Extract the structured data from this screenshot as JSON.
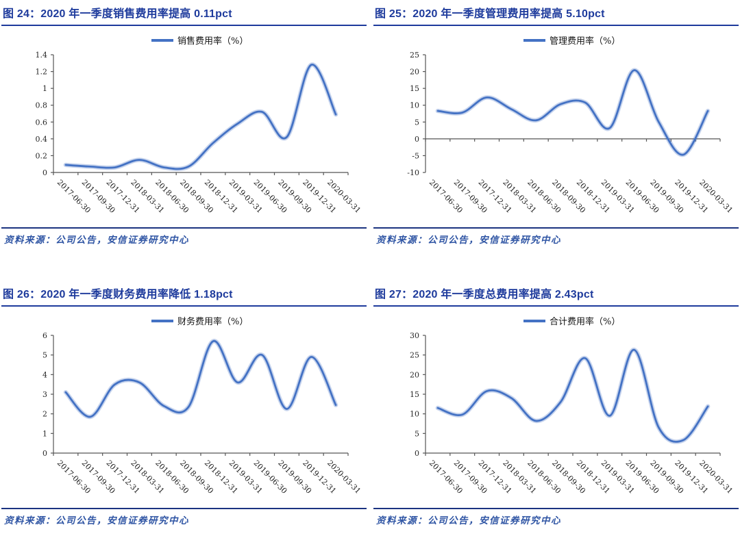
{
  "page": {
    "background": "#ffffff"
  },
  "colors": {
    "title_navy": "#1d3a9c",
    "rule_navy": "#1b3380",
    "source_blue": "#2f55a4",
    "line_blue": "#4472c4",
    "line_halo": "rgba(68,114,196,0.30)",
    "axis_gray": "#555555",
    "tick_text": "#262626"
  },
  "x_categories": [
    "2017-06-30",
    "2017-09-30",
    "2017-12-31",
    "2018-03-31",
    "2018-06-30",
    "2018-09-30",
    "2018-12-31",
    "2019-03-31",
    "2019-06-30",
    "2019-09-30",
    "2019-12-31",
    "2020-03-31"
  ],
  "figures": [
    {
      "title": "图 24：2020 年一季度销售费用率提高 0.11pct",
      "legend": "销售费用率（%）",
      "source": "资料来源：公司公告，安信证券研究中心",
      "chart_data": {
        "type": "line",
        "title": "2020 年一季度销售费用率提高 0.11pct",
        "categories": [
          "2017-06-30",
          "2017-09-30",
          "2017-12-31",
          "2018-03-31",
          "2018-06-30",
          "2018-09-30",
          "2018-12-31",
          "2019-03-31",
          "2019-06-30",
          "2019-09-30",
          "2019-12-31",
          "2020-03-31"
        ],
        "series": [
          {
            "name": "销售费用率（%）",
            "values": [
              0.09,
              0.07,
              0.06,
              0.15,
              0.06,
              0.07,
              0.35,
              0.58,
              0.72,
              0.42,
              1.28,
              0.69
            ]
          }
        ],
        "ylim": [
          0,
          1.4
        ],
        "yticks": [
          0,
          0.2,
          0.4,
          0.6,
          0.8,
          1,
          1.2,
          1.4
        ],
        "grid": false,
        "legend_position": "top-center",
        "smooth": true
      }
    },
    {
      "title": "图 25：2020 年一季度管理费用率提高 5.10pct",
      "legend": "管理费用率（%）",
      "source": "资料来源：公司公告，安信证券研究中心",
      "chart_data": {
        "type": "line",
        "title": "2020 年一季度管理费用率提高 5.10pct",
        "categories": [
          "2017-06-30",
          "2017-09-30",
          "2017-12-31",
          "2018-03-31",
          "2018-06-30",
          "2018-09-30",
          "2018-12-31",
          "2019-03-31",
          "2019-06-30",
          "2019-09-30",
          "2019-12-31",
          "2020-03-31"
        ],
        "series": [
          {
            "name": "管理费用率（%）",
            "values": [
              8.3,
              7.8,
              12.3,
              8.8,
              5.5,
              10.3,
              10.8,
              3.2,
              20.4,
              5.0,
              -4.7,
              8.3
            ]
          }
        ],
        "ylim": [
          -10,
          25
        ],
        "yticks": [
          -10,
          -5,
          0,
          5,
          10,
          15,
          20,
          25
        ],
        "grid": false,
        "legend_position": "top-center",
        "smooth": true
      }
    },
    {
      "title": "图 26：2020 年一季度财务费用率降低 1.18pct",
      "legend": "财务费用率（%）",
      "source": "资料来源：公司公告，安信证券研究中心",
      "chart_data": {
        "type": "line",
        "title": "2020 年一季度财务费用率降低 1.18pct",
        "categories": [
          "2017-06-30",
          "2017-09-30",
          "2017-12-31",
          "2018-03-31",
          "2018-06-30",
          "2018-09-30",
          "2018-12-31",
          "2019-03-31",
          "2019-06-30",
          "2019-09-30",
          "2019-12-31",
          "2020-03-31"
        ],
        "series": [
          {
            "name": "财务费用率（%）",
            "values": [
              3.1,
              1.85,
              3.5,
              3.6,
              2.4,
              2.35,
              5.7,
              3.6,
              5.0,
              2.25,
              4.9,
              2.45
            ]
          }
        ],
        "ylim": [
          0,
          6
        ],
        "yticks": [
          0,
          1,
          2,
          3,
          4,
          5,
          6
        ],
        "grid": false,
        "legend_position": "top-center",
        "smooth": true
      }
    },
    {
      "title": "图 27：2020 年一季度总费用率提高 2.43pct",
      "legend": "合计费用率（%）",
      "source": "资料来源：公司公告，安信证券研究中心",
      "chart_data": {
        "type": "line",
        "title": "2020 年一季度总费用率提高 2.43pct",
        "categories": [
          "2017-06-30",
          "2017-09-30",
          "2017-12-31",
          "2018-03-31",
          "2018-06-30",
          "2018-09-30",
          "2018-12-31",
          "2019-03-31",
          "2019-06-30",
          "2019-09-30",
          "2019-12-31",
          "2020-03-31"
        ],
        "series": [
          {
            "name": "合计费用率（%）",
            "values": [
              11.5,
              9.8,
              15.8,
              14.0,
              8.2,
              13.0,
              24.2,
              9.5,
              26.3,
              6.5,
              3.3,
              11.9
            ]
          }
        ],
        "ylim": [
          0,
          30
        ],
        "yticks": [
          0,
          5,
          10,
          15,
          20,
          25,
          30
        ],
        "grid": false,
        "legend_position": "top-center",
        "smooth": true
      }
    }
  ]
}
